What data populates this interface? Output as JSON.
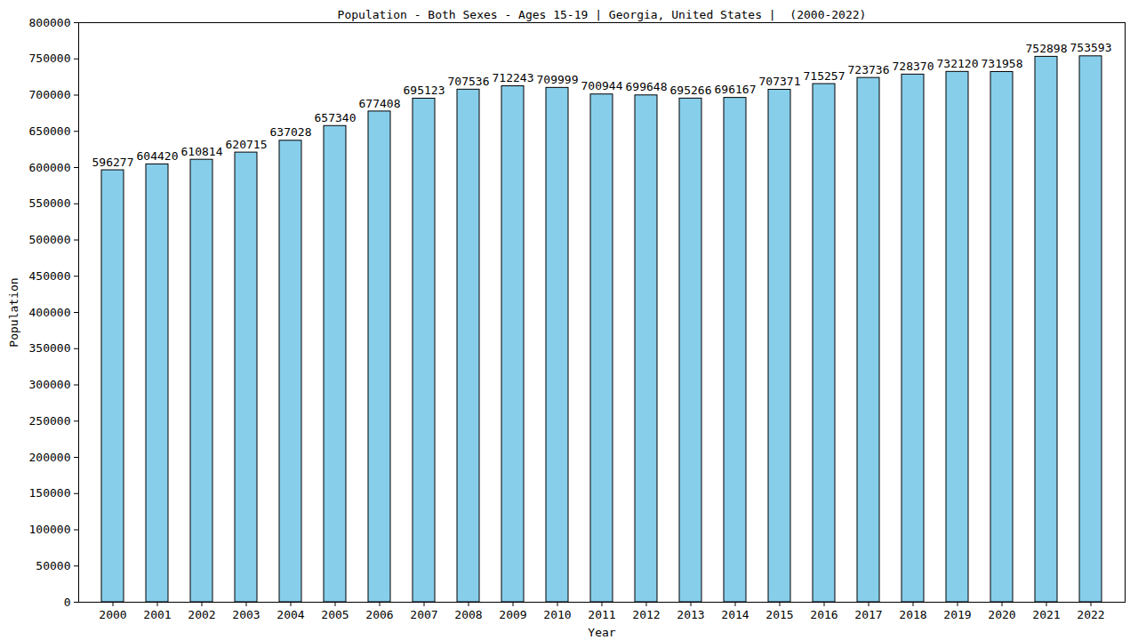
{
  "chart_data": {
    "type": "bar",
    "title": "Population - Both Sexes - Ages 15-19 | Georgia, United States |  (2000-2022)",
    "x_label": "Year",
    "y_label": "Population",
    "categories": [
      "2000",
      "2001",
      "2002",
      "2003",
      "2004",
      "2005",
      "2006",
      "2007",
      "2008",
      "2009",
      "2010",
      "2011",
      "2012",
      "2013",
      "2014",
      "2015",
      "2016",
      "2017",
      "2018",
      "2019",
      "2020",
      "2021",
      "2022"
    ],
    "values": [
      596277,
      604420,
      610814,
      620715,
      637028,
      657340,
      677408,
      695123,
      707536,
      712243,
      709999,
      700944,
      699648,
      695266,
      696167,
      707371,
      715257,
      723736,
      728370,
      732120,
      731958,
      752898,
      753593
    ],
    "color": "#87ceeb",
    "ylim": [
      0,
      800000
    ],
    "yticks": [
      0,
      50000,
      100000,
      150000,
      200000,
      250000,
      300000,
      350000,
      400000,
      450000,
      500000,
      550000,
      600000,
      650000,
      700000,
      750000,
      800000
    ],
    "grid": false,
    "data_labels": true
  }
}
